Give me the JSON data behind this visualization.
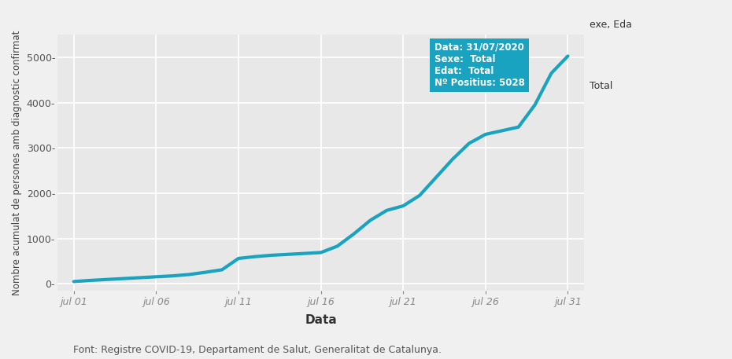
{
  "xlabel": "Data",
  "ylabel": "Nombre acumulat de persones amb diagnostic confirmat",
  "fig_bg_color": "#f0f0f0",
  "plot_bg_color": "#e8e8e8",
  "line_color": "#1aA3C0",
  "line_width": 3.0,
  "x_labels": [
    "jul 01",
    "jul 06",
    "jul 11",
    "jul 16",
    "jul 21",
    "jul 26",
    "jul 31"
  ],
  "x_positions": [
    1,
    6,
    11,
    16,
    21,
    26,
    31
  ],
  "xlim": [
    0,
    32
  ],
  "ylim": [
    -150,
    5500
  ],
  "yticks": [
    0,
    1000,
    2000,
    3000,
    4000,
    5000
  ],
  "ytick_labels": [
    "0-",
    "1000-",
    "2000-",
    "3000-",
    "4000-",
    "5000-"
  ],
  "data_days": [
    1,
    2,
    3,
    4,
    5,
    6,
    7,
    8,
    9,
    10,
    11,
    12,
    13,
    14,
    15,
    16,
    17,
    18,
    19,
    20,
    21,
    22,
    23,
    24,
    25,
    26,
    27,
    28,
    29,
    30,
    31
  ],
  "data_values": [
    50,
    75,
    95,
    115,
    135,
    155,
    175,
    205,
    255,
    310,
    560,
    600,
    630,
    650,
    670,
    690,
    830,
    1100,
    1400,
    1620,
    1720,
    1950,
    2350,
    2750,
    3100,
    3300,
    3380,
    3460,
    3950,
    4650,
    5028
  ],
  "tooltip_lines": [
    "Data: 31/07/2020",
    "Sexe:  Total",
    "Edat:  Total",
    "Nº Positius: 5028"
  ],
  "tooltip_bg": "#1aA3C0",
  "tooltip_text_color": "#ffffff",
  "legend_text": "Total",
  "legend_partial": "exe, Eda",
  "footer": "Font: Registre COVID-19, Departament de Salut, Generalitat de Catalunya.",
  "footer_fontsize": 9,
  "ylabel_fontsize": 8.5,
  "xlabel_fontsize": 11,
  "tick_fontsize": 9,
  "grid_color": "#ffffff",
  "grid_lw": 1.2
}
